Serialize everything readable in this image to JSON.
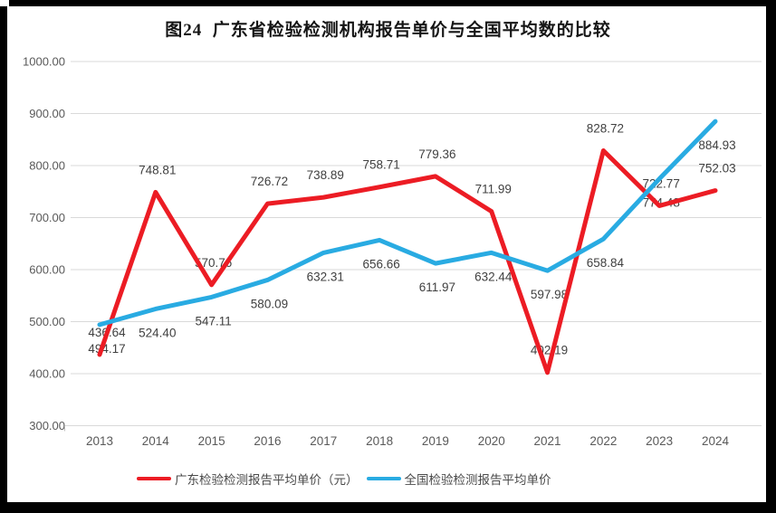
{
  "chart_data": {
    "type": "line",
    "title": "图24  广东省检验检测机构报告单价与全国平均数的比较",
    "categories": [
      "2013",
      "2014",
      "2015",
      "2016",
      "2017",
      "2018",
      "2019",
      "2020",
      "2021",
      "2022",
      "2023",
      "2024"
    ],
    "series": [
      {
        "name": "广东检验检测报告平均单价（元）",
        "color": "#EC1C24",
        "label_position": "above",
        "values": [
          436.64,
          748.81,
          570.76,
          726.72,
          738.89,
          758.71,
          779.36,
          711.99,
          402.19,
          828.72,
          722.77,
          752.03
        ]
      },
      {
        "name": "全国检验检测报告平均单价",
        "color": "#29ABE2",
        "label_position": "below",
        "values": [
          494.17,
          524.4,
          547.11,
          580.09,
          632.31,
          656.66,
          611.97,
          632.44,
          597.98,
          658.84,
          774.48,
          884.93
        ]
      }
    ],
    "xlabel": "",
    "ylabel": "",
    "ylim": [
      300,
      1000
    ],
    "ytick_labels": [
      "1000.00",
      "900.00",
      "800.00",
      "700.00",
      "600.00",
      "500.00",
      "400.00",
      "300.00"
    ],
    "grid": "horizontal",
    "legend_position": "bottom",
    "line_width": 5,
    "colors": {
      "gridline": "#D9D9D9",
      "axis_tick": "#BFBFBF",
      "axis_text": "#595959",
      "data_label": "#404040",
      "frame": "#000000",
      "background": "#FFFFFF"
    }
  }
}
